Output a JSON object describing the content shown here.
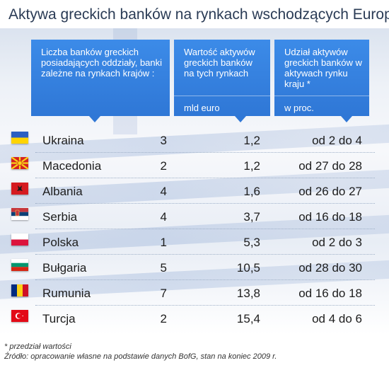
{
  "title": "Aktywa greckich banków na rynkach wschodzących Europy",
  "headers": {
    "col1": "Liczba banków greckich posiadających oddziały, banki zależne na rynkach krajów :",
    "col2": "Wartość aktywów greckich banków na tych rynkach",
    "col2_unit": "mld euro",
    "col3": "Udział aktywów greckich banków w aktywach rynku kraju *",
    "col3_unit": "w proc."
  },
  "rows": [
    {
      "country": "Ukraina",
      "banks": "3",
      "assets": "1,2",
      "share": "od 2 do 4",
      "flag": "ukraine-flag"
    },
    {
      "country": "Macedonia",
      "banks": "2",
      "assets": "1,2",
      "share": "od 27 do 28",
      "flag": "macedonia-flag"
    },
    {
      "country": "Albania",
      "banks": "4",
      "assets": "1,6",
      "share": "od 26 do 27",
      "flag": "albania-flag"
    },
    {
      "country": "Serbia",
      "banks": "4",
      "assets": "3,7",
      "share": "od 16 do 18",
      "flag": "serbia-flag"
    },
    {
      "country": "Polska",
      "banks": "1",
      "assets": "5,3",
      "share": "od 2 do 3",
      "flag": "poland-flag"
    },
    {
      "country": "Bułgaria",
      "banks": "5",
      "assets": "10,5",
      "share": "od 28 do 30",
      "flag": "bulgaria-flag"
    },
    {
      "country": "Rumunia",
      "banks": "7",
      "assets": "13,8",
      "share": "od 16 do 18",
      "flag": "romania-flag"
    },
    {
      "country": "Turcja",
      "banks": "2",
      "assets": "15,4",
      "share": "od 4 do 6",
      "flag": "turkey-flag"
    }
  ],
  "footer": {
    "note": "* przedział wartości",
    "source": "Źródło: opracowanie własne na podstawie danych BofG, stan na koniec 2009 r."
  },
  "colors": {
    "header_blue": "#2f77d6",
    "title_text": "#2a3b55"
  }
}
